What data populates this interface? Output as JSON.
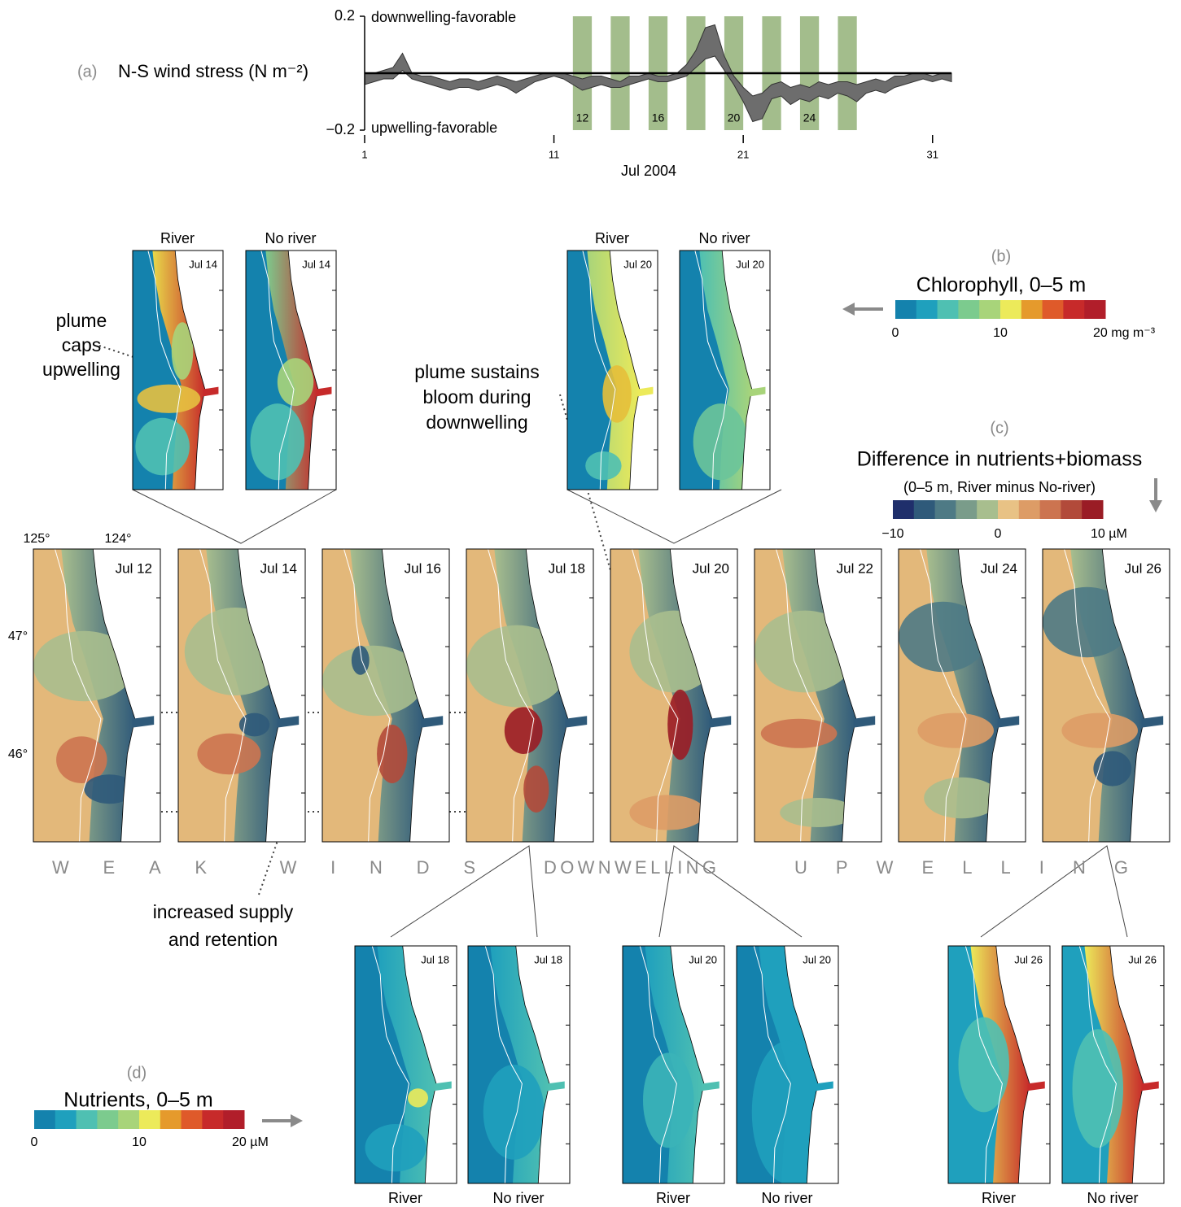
{
  "chart_data": {
    "type": "band",
    "panel_label": "(a)",
    "ylabel": "N-S wind stress (N m⁻²)",
    "xlabel": "Jul 2004",
    "annotations": [
      "downwelling-favorable",
      "upwelling-favorable"
    ],
    "x": [
      1,
      1.5,
      2,
      2.5,
      3,
      3.5,
      4,
      4.5,
      5,
      5.5,
      6,
      6.5,
      7,
      7.5,
      8,
      8.5,
      9,
      9.5,
      10,
      10.5,
      11,
      11.5,
      12,
      12.5,
      13,
      13.5,
      14,
      14.5,
      15,
      15.5,
      16,
      16.5,
      17,
      17.5,
      18,
      18.5,
      19,
      19.5,
      20,
      20.5,
      21,
      21.5,
      22,
      22.5,
      23,
      23.5,
      24,
      24.5,
      25,
      25.5,
      26,
      26.5,
      27,
      27.5,
      28,
      28.5,
      29,
      29.5,
      30,
      30.5,
      31,
      31.5,
      32
    ],
    "low": [
      -0.04,
      -0.03,
      -0.02,
      -0.02,
      0.01,
      -0.02,
      -0.03,
      -0.04,
      -0.05,
      -0.06,
      -0.05,
      -0.05,
      -0.06,
      -0.05,
      -0.04,
      -0.05,
      -0.07,
      -0.05,
      -0.03,
      -0.02,
      -0.01,
      -0.02,
      -0.04,
      -0.06,
      -0.05,
      -0.04,
      -0.05,
      -0.05,
      -0.04,
      -0.03,
      -0.02,
      -0.03,
      -0.03,
      -0.02,
      -0.01,
      0.02,
      0.05,
      0.06,
      0.01,
      -0.04,
      -0.1,
      -0.17,
      -0.16,
      -0.09,
      -0.08,
      -0.11,
      -0.09,
      -0.1,
      -0.08,
      -0.09,
      -0.07,
      -0.08,
      -0.1,
      -0.07,
      -0.06,
      -0.07,
      -0.05,
      -0.04,
      -0.03,
      -0.02,
      -0.03,
      -0.02,
      -0.03
    ],
    "high": [
      0,
      0,
      0.01,
      0.02,
      0.07,
      0,
      -0.01,
      -0.01,
      -0.02,
      -0.03,
      -0.02,
      -0.02,
      -0.03,
      -0.02,
      -0.01,
      -0.02,
      -0.03,
      -0.02,
      -0.01,
      0,
      0,
      0,
      -0.01,
      -0.02,
      -0.01,
      -0.01,
      -0.02,
      -0.03,
      -0.01,
      -0.01,
      0,
      -0.01,
      -0.01,
      0,
      0.03,
      0.08,
      0.16,
      0.17,
      0.06,
      -0.01,
      -0.05,
      -0.08,
      -0.07,
      -0.04,
      -0.03,
      -0.05,
      -0.04,
      -0.05,
      -0.03,
      -0.04,
      -0.03,
      -0.03,
      -0.04,
      -0.03,
      -0.02,
      -0.03,
      -0.01,
      -0.01,
      0,
      0,
      -0.01,
      0,
      0
    ],
    "color": "#6d6d6d",
    "xlim": [
      1,
      32
    ],
    "xticks": [
      1,
      11,
      21,
      31
    ],
    "ylim": [
      -0.2,
      0.2
    ],
    "yticks": [
      {
        "value": -0.2,
        "label": "−0.2"
      },
      0.2
    ],
    "baseline": 0,
    "highlight_days": [
      12,
      14,
      16,
      18,
      20,
      22,
      24,
      26
    ],
    "highlight_labels": [
      12,
      16,
      20,
      24
    ],
    "highlight_color": "#a3bd8c"
  },
  "panel_b": {
    "label": "(b)",
    "colorbar": {
      "title": "Chlorophyll, 0–5 m",
      "lim": [
        0,
        20
      ],
      "ticks": [
        0,
        10,
        {
          "value": 20,
          "label": "20 mg m⁻³"
        }
      ],
      "colors": [
        "#1482ad",
        "#1fa0bd",
        "#4fc0b2",
        "#7ccb8e",
        "#a8d47a",
        "#ecea5a",
        "#e59a2c",
        "#df5a2a",
        "#c72a2a",
        "#b11e2a"
      ]
    },
    "groups": [
      {
        "date": "Jul 14",
        "maps": [
          "River",
          "No river"
        ]
      },
      {
        "date": "Jul 20",
        "maps": [
          "River",
          "No river"
        ]
      }
    ],
    "annotations": [
      [
        "plume",
        "caps",
        "upwelling"
      ],
      [
        "plume sustains",
        "bloom during",
        "downwelling"
      ]
    ]
  },
  "panel_c": {
    "label": "(c)",
    "colorbar": {
      "title": "Difference in nutrients+biomass",
      "subtitle": "(0–5 m, River minus No-river)",
      "lim": [
        -10,
        10
      ],
      "ticks": [
        {
          "value": -10,
          "label": "−10"
        },
        0,
        {
          "value": 10,
          "label": "10 µM"
        }
      ],
      "colors": [
        "#1f2f6b",
        "#2f5a7a",
        "#4e7a85",
        "#7a9c8a",
        "#a8be8e",
        "#e8c285",
        "#dd9c66",
        "#cc7450",
        "#b24a3a",
        "#9a1c25"
      ]
    },
    "dates": [
      "Jul 12",
      "Jul 14",
      "Jul 16",
      "Jul 18",
      "Jul 20",
      "Jul 22",
      "Jul 24",
      "Jul 26"
    ],
    "lon_labels": [
      "125°",
      "124°"
    ],
    "lat_labels": [
      "47°",
      "46°"
    ],
    "regimes": [
      "WEAK WINDS",
      "DOWNWELLING",
      "UPWELLING"
    ],
    "annotation": [
      "increased supply",
      "and retention"
    ]
  },
  "panel_d": {
    "label": "(d)",
    "colorbar": {
      "title": "Nutrients, 0–5 m",
      "lim": [
        0,
        20
      ],
      "ticks": [
        0,
        10,
        {
          "value": 20,
          "label": "20 µM"
        }
      ],
      "colors": [
        "#1482ad",
        "#1fa0bd",
        "#4fc0b2",
        "#7ccb8e",
        "#a8d47a",
        "#ecea5a",
        "#e59a2c",
        "#df5a2a",
        "#c72a2a",
        "#b11e2a"
      ]
    },
    "groups": [
      {
        "date": "Jul 18",
        "maps": [
          "River",
          "No river"
        ]
      },
      {
        "date": "Jul 20",
        "maps": [
          "River",
          "No river"
        ]
      },
      {
        "date": "Jul 26",
        "maps": [
          "River",
          "No river"
        ]
      }
    ]
  }
}
